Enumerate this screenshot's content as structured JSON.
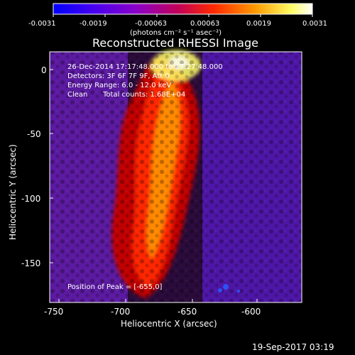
{
  "colorbar": {
    "ticks": [
      "-0.0031",
      "-0.0019",
      "-0.00063",
      "0.00063",
      "0.0019",
      "0.0031"
    ],
    "units": "(photons cm⁻² s⁻¹ asec⁻²)"
  },
  "title": "Reconstructed RHESSI Image",
  "annotations": {
    "time": "26-Dec-2014 17:17:48.000 to 17:27:48.000",
    "detectors": "Detectors: 3F 6F 7F 9F, Att 0",
    "energy": "Energy Range: 6.0 - 12.0 keV",
    "clean": "Clean",
    "counts": "Total counts: 1.68E+04",
    "peak": "Position of Peak = [-655,0]"
  },
  "axes": {
    "xlabel": "Heliocentric X (arcsec)",
    "ylabel": "Heliocentric Y (arcsec)",
    "xticks": [
      "-750",
      "-700",
      "-650",
      "-600"
    ],
    "yticks": [
      "0",
      "-50",
      "-100",
      "-150"
    ]
  },
  "footer": {
    "timestamp": "19-Sep-2017 03:19"
  },
  "colors": {
    "background": "#000000",
    "text": "#ffffff",
    "colormap": [
      "#0000ff",
      "#6b00d8",
      "#b0005a",
      "#ff2a00",
      "#ff9a00",
      "#ffff66",
      "#ffffff"
    ]
  },
  "image": {
    "description_only": false
  }
}
